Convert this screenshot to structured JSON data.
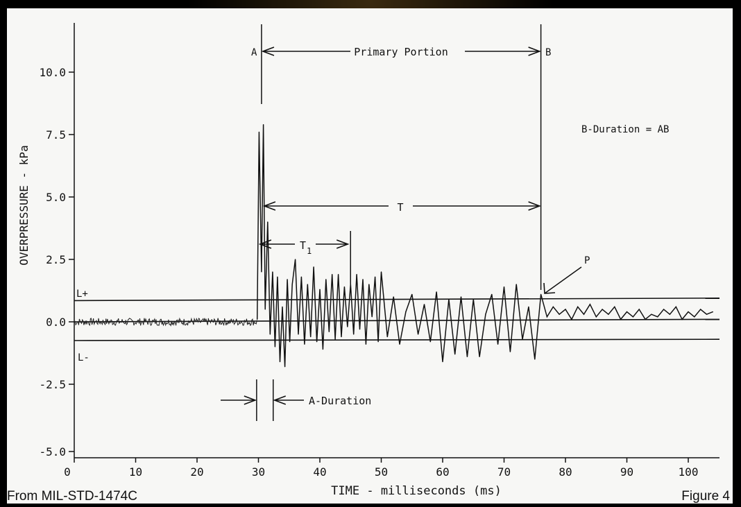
{
  "chart_data": {
    "type": "line",
    "xlabel": "TIME - milliseconds (ms)",
    "ylabel": "OVERPRESSURE - kPa",
    "xlim": [
      0,
      105
    ],
    "ylim": [
      -5.4,
      11.5
    ],
    "x_ticks": [
      "0",
      "10",
      "20",
      "30",
      "40",
      "50",
      "60",
      "70",
      "80",
      "90",
      "100"
    ],
    "x_tick_values": [
      0,
      10,
      20,
      30,
      40,
      50,
      60,
      70,
      80,
      90,
      100
    ],
    "y_ticks": [
      "10.0",
      "7.5",
      "5.0",
      "2.5",
      "0.0",
      "-2.5",
      "-5.0"
    ],
    "y_tick_values": [
      10,
      7.5,
      5,
      2.5,
      0,
      -2.5,
      -5
    ],
    "baseline_noise": {
      "x_start": 0,
      "x_end": 29.8,
      "amplitude": 0.15
    },
    "series": [
      {
        "x": [
          29.8,
          30.1,
          30.5,
          30.8,
          31.1,
          31.5,
          31.9,
          32.3,
          32.7,
          33.1,
          33.5,
          33.9,
          34.3,
          34.7,
          35.1,
          35.5,
          36.0,
          36.5,
          37.0,
          37.5,
          38.0,
          38.5,
          39.0,
          39.5,
          40.0,
          40.5,
          41.0,
          41.5,
          42.0,
          42.5,
          43.0,
          43.5,
          44.0,
          44.5,
          45.0,
          45.5,
          46.0,
          46.5,
          47.0,
          47.5,
          48.0,
          48.5,
          49.0,
          49.5,
          50.0,
          51.0,
          52.0,
          53.0,
          54.0,
          55.0,
          56.0,
          57.0,
          58.0,
          59.0,
          60.0,
          61.0,
          62.0,
          63.0,
          64.0,
          65.0,
          66.0,
          67.0,
          68.0,
          69.0,
          70.0,
          71.0,
          72.0,
          73.0,
          74.0,
          75.0,
          76.0,
          77.0,
          78.0,
          79.0,
          80.0,
          81.0,
          82.0,
          83.0,
          84.0,
          85.0,
          86.0,
          87.0,
          88.0,
          89.0,
          90.0,
          91.0,
          92.0,
          93.0,
          94.0,
          95.0,
          96.0,
          97.0,
          98.0,
          99.0,
          100.0,
          101.0,
          102.0,
          103.0,
          104.0
        ],
        "y": [
          0.1,
          7.6,
          2.0,
          7.9,
          0.5,
          4.0,
          -0.5,
          2.0,
          -1.0,
          1.8,
          -1.6,
          0.6,
          -1.8,
          1.7,
          -0.8,
          1.5,
          2.5,
          -0.5,
          1.8,
          -0.9,
          1.5,
          -0.6,
          2.2,
          -0.8,
          1.3,
          -1.1,
          1.7,
          -0.4,
          1.9,
          -0.7,
          1.9,
          -0.6,
          1.4,
          -0.2,
          1.5,
          -0.5,
          1.9,
          -0.3,
          1.7,
          -0.9,
          1.5,
          0.2,
          1.8,
          -0.8,
          2.0,
          -0.6,
          1.0,
          -0.9,
          0.4,
          1.1,
          -0.5,
          0.7,
          -0.8,
          1.2,
          -1.6,
          0.9,
          -1.3,
          1.0,
          -1.4,
          0.9,
          -1.4,
          0.3,
          1.1,
          -0.9,
          1.4,
          -1.2,
          1.5,
          -0.7,
          0.6,
          -1.5,
          1.1,
          0.2,
          0.6,
          0.3,
          0.5,
          0.1,
          0.6,
          0.3,
          0.7,
          0.2,
          0.5,
          0.3,
          0.6,
          0.1,
          0.4,
          0.2,
          0.5,
          0.1,
          0.3,
          0.2,
          0.5,
          0.3,
          0.6,
          0.1,
          0.4,
          0.2,
          0.5,
          0.3,
          0.4
        ]
      }
    ],
    "reference_lines": [
      {
        "label": "L+",
        "y_start": 0.85,
        "y_end": 0.95
      },
      {
        "label": "L-",
        "y_start": -0.75,
        "y_end": -0.7
      },
      {
        "label": "",
        "y_start": 0.0,
        "y_end": 0.1
      }
    ],
    "markers": {
      "A_x": 30.5,
      "B_x": 76.0,
      "T1_end_x": 45.0,
      "A_duration_x": [
        29.7,
        32.4
      ]
    },
    "annotations": {
      "a": "A",
      "b": "B",
      "primary": "Primary Portion",
      "bduration": "B-Duration = AB",
      "t": "T",
      "t1": "T",
      "t1_sub": "1",
      "p": "P",
      "lplus": "L+",
      "lminus": "L-",
      "aduration": "A-Duration"
    }
  },
  "footer": {
    "source": "From MIL-STD-1474C",
    "figure": "Figure 4"
  }
}
